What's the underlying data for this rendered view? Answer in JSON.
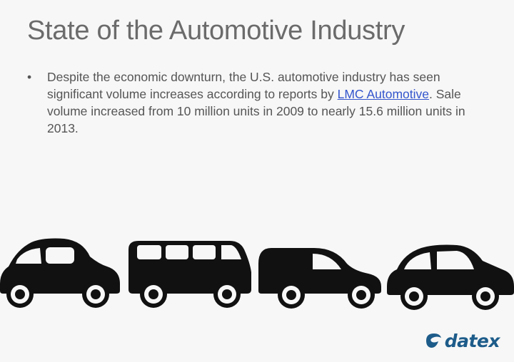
{
  "slide": {
    "title": "State of the Automotive Industry",
    "bullet": {
      "text_before_link": "Despite the economic downturn, the U.S. automotive industry has seen significant volume increases according to reports by ",
      "link_text": "LMC Automotive",
      "text_after_link": ". Sale volume increased from 10 million units in 2009 to nearly 15.6 million units in 2013."
    }
  },
  "illustration": {
    "icons": [
      "hatchback-car-icon",
      "minibus-icon",
      "delivery-van-icon",
      "compact-car-icon"
    ],
    "color": "#111111"
  },
  "logo": {
    "text": "datex",
    "color": "#1d5c8a",
    "icon": "datex-swoosh-icon"
  }
}
